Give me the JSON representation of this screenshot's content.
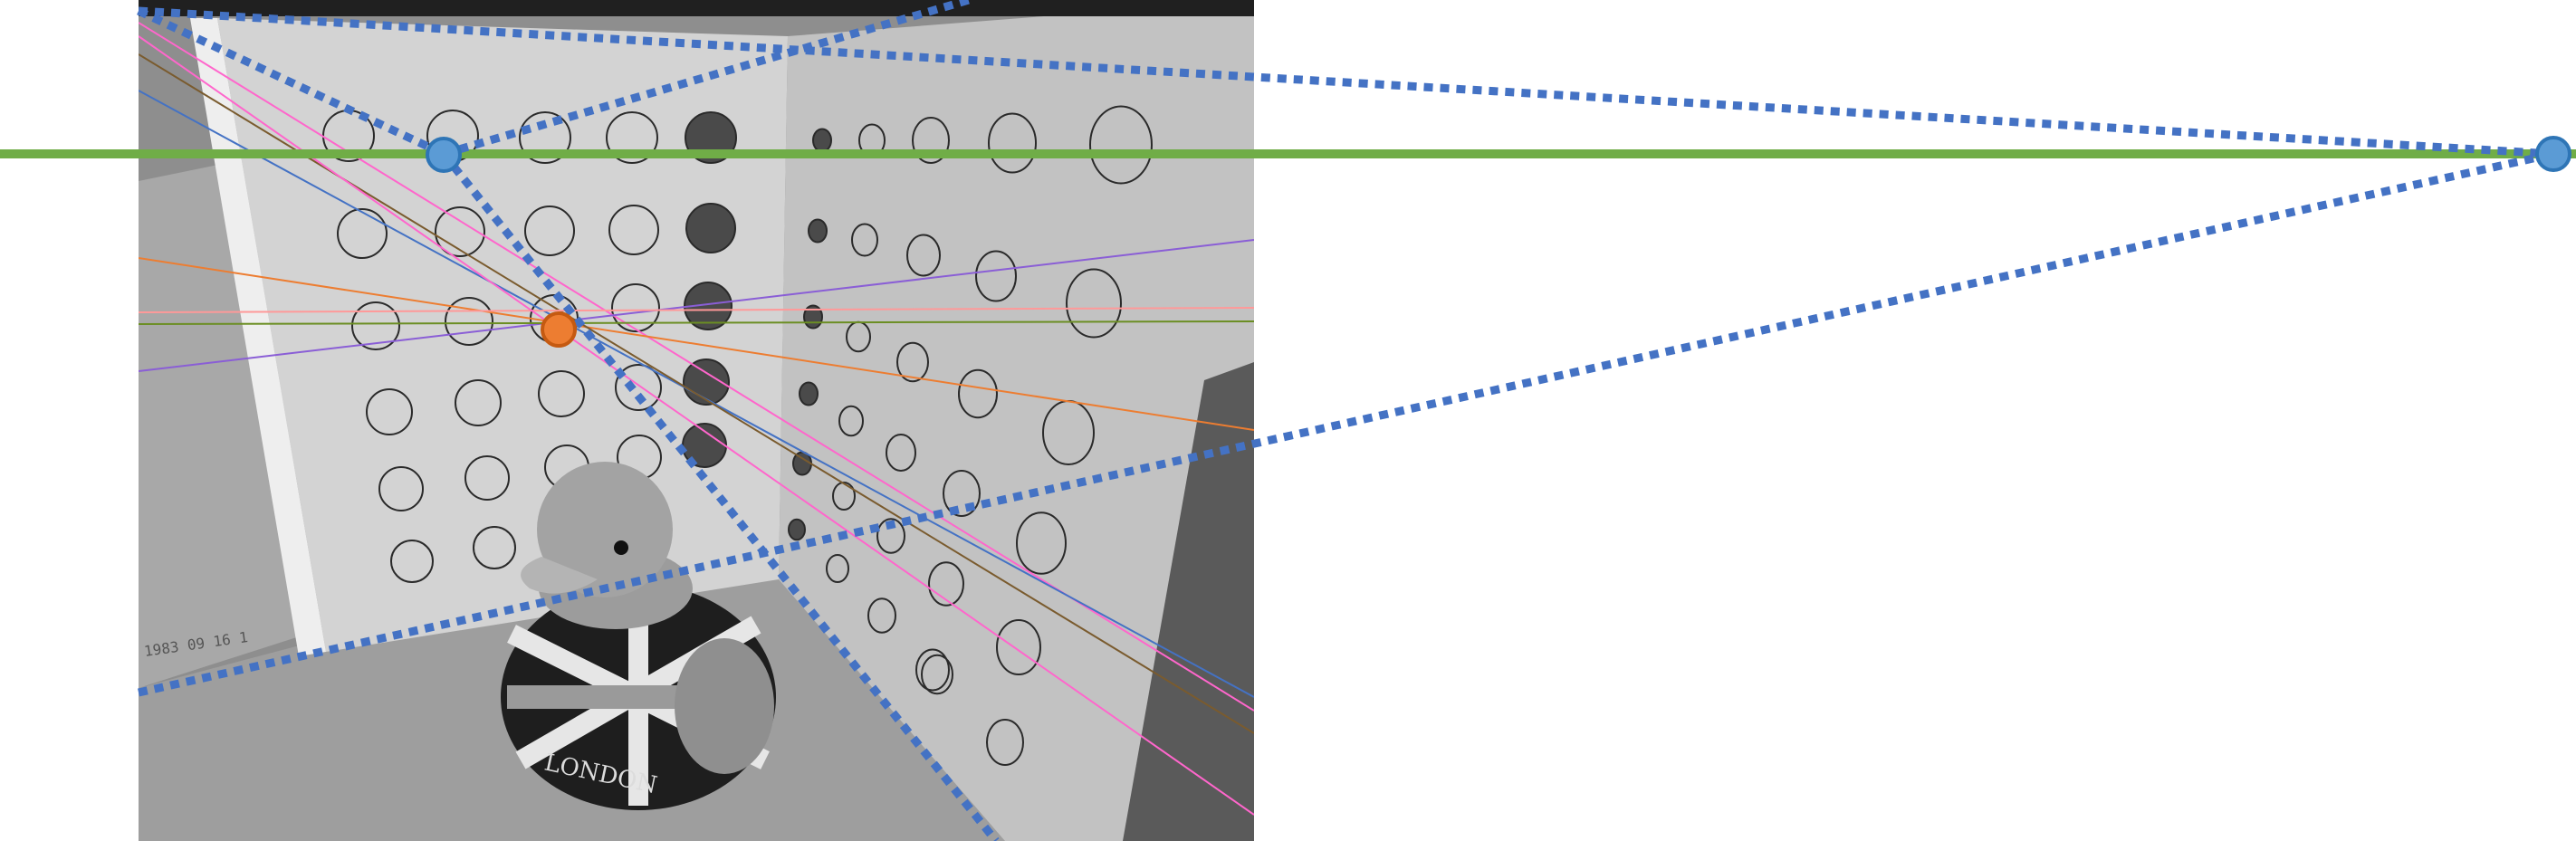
{
  "photo": {
    "description_text": "",
    "duck_print": "LONDON",
    "date_stamp": "1983 09 16 1",
    "tones": {
      "wall_left": "#cfcfcf",
      "wall_right": "#bdbdbd",
      "floor": "#a9a9a9",
      "dark": "#1e1e1e",
      "ring": "#2a2a2a",
      "filled_dot": "#4a4a4a"
    }
  },
  "horizon_line": {
    "color": "#70ad47"
  },
  "vanishing_points": {
    "left_color": "#5b9bd5",
    "right_color": "#5b9bd5",
    "outline": "#2e75b6"
  },
  "center_point": {
    "color": "#ed7d31",
    "outline": "#c55a11"
  },
  "guide_dash_color": "#4472c4",
  "pencil_line_colors": [
    "#ff66cc",
    "#4472c4",
    "#ed7d31",
    "#8a5ed6",
    "#6b8e23",
    "#7a5b2e",
    "#ff9999"
  ]
}
